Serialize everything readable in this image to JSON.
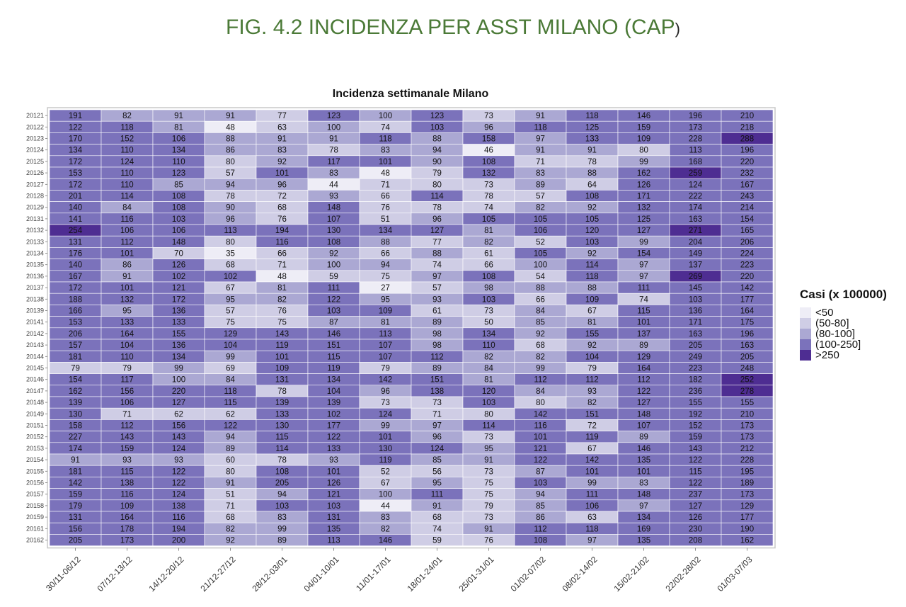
{
  "figure_title": "FIG. 4.2 INCIDENZA PER ASST MILANO (CAP",
  "figure_title_paren": ")",
  "chart_data": {
    "type": "heatmap",
    "title": "Incidenza settimanale Milano",
    "x": [
      "30/11-06/12",
      "07/12-13/12",
      "14/12-20/12",
      "21/12-27/12",
      "28/12-03/01",
      "04/01-10/01",
      "11/01-17/01",
      "18/01-24/01",
      "25/01-31/01",
      "01/02-07/02",
      "08/02-14/02",
      "15/02-21/02",
      "22/02-28/02",
      "01/03-07/03"
    ],
    "y": [
      "20121",
      "20122",
      "20123",
      "20124",
      "20125",
      "20126",
      "20127",
      "20128",
      "20129",
      "20131",
      "20132",
      "20133",
      "20134",
      "20135",
      "20136",
      "20137",
      "20138",
      "20139",
      "20141",
      "20142",
      "20143",
      "20144",
      "20145",
      "20146",
      "20147",
      "20148",
      "20149",
      "20151",
      "20152",
      "20153",
      "20154",
      "20155",
      "20156",
      "20157",
      "20158",
      "20159",
      "20161",
      "20162"
    ],
    "values": [
      [
        191,
        82,
        91,
        91,
        77,
        123,
        100,
        123,
        73,
        91,
        118,
        146,
        196,
        210
      ],
      [
        122,
        118,
        81,
        48,
        63,
        100,
        74,
        103,
        96,
        118,
        125,
        159,
        173,
        218
      ],
      [
        170,
        152,
        106,
        88,
        91,
        91,
        118,
        88,
        158,
        97,
        133,
        109,
        228,
        288
      ],
      [
        134,
        110,
        134,
        86,
        83,
        78,
        83,
        94,
        46,
        91,
        91,
        80,
        113,
        196
      ],
      [
        172,
        124,
        110,
        80,
        92,
        117,
        101,
        90,
        108,
        71,
        78,
        99,
        168,
        220
      ],
      [
        153,
        110,
        123,
        57,
        101,
        83,
        48,
        79,
        132,
        83,
        88,
        162,
        259,
        232
      ],
      [
        172,
        110,
        85,
        94,
        96,
        44,
        71,
        80,
        73,
        89,
        64,
        126,
        124,
        167
      ],
      [
        201,
        114,
        108,
        78,
        72,
        93,
        66,
        114,
        78,
        57,
        108,
        171,
        222,
        243
      ],
      [
        140,
        84,
        108,
        90,
        68,
        148,
        76,
        78,
        74,
        82,
        92,
        132,
        174,
        214
      ],
      [
        141,
        116,
        103,
        96,
        76,
        107,
        51,
        96,
        105,
        105,
        105,
        125,
        163,
        154
      ],
      [
        254,
        106,
        106,
        113,
        194,
        130,
        134,
        127,
        81,
        106,
        120,
        127,
        271,
        165
      ],
      [
        131,
        112,
        148,
        80,
        116,
        108,
        88,
        77,
        82,
        52,
        103,
        99,
        204,
        206
      ],
      [
        176,
        101,
        70,
        35,
        66,
        92,
        66,
        88,
        61,
        105,
        92,
        154,
        149,
        224
      ],
      [
        140,
        86,
        126,
        68,
        71,
        100,
        94,
        74,
        66,
        100,
        114,
        97,
        137,
        223
      ],
      [
        167,
        91,
        102,
        102,
        48,
        59,
        75,
        97,
        108,
        54,
        118,
        97,
        269,
        220
      ],
      [
        172,
        101,
        121,
        67,
        81,
        111,
        27,
        57,
        98,
        88,
        88,
        111,
        145,
        142
      ],
      [
        188,
        132,
        172,
        95,
        82,
        122,
        95,
        93,
        103,
        66,
        109,
        74,
        103,
        177
      ],
      [
        166,
        95,
        136,
        57,
        76,
        103,
        109,
        61,
        73,
        84,
        67,
        115,
        136,
        164
      ],
      [
        153,
        133,
        133,
        75,
        75,
        87,
        81,
        89,
        50,
        85,
        81,
        101,
        171,
        175
      ],
      [
        206,
        164,
        155,
        129,
        143,
        146,
        113,
        98,
        134,
        92,
        155,
        137,
        163,
        196
      ],
      [
        157,
        104,
        136,
        104,
        119,
        151,
        107,
        98,
        110,
        68,
        92,
        89,
        205,
        163
      ],
      [
        181,
        110,
        134,
        99,
        101,
        115,
        107,
        112,
        82,
        82,
        104,
        129,
        249,
        205
      ],
      [
        79,
        79,
        99,
        69,
        109,
        119,
        79,
        89,
        84,
        99,
        79,
        164,
        223,
        248
      ],
      [
        154,
        117,
        100,
        84,
        131,
        134,
        142,
        151,
        81,
        112,
        112,
        112,
        182,
        252
      ],
      [
        162,
        156,
        220,
        118,
        78,
        104,
        96,
        138,
        120,
        84,
        93,
        122,
        236,
        278
      ],
      [
        139,
        106,
        127,
        115,
        139,
        139,
        73,
        73,
        103,
        80,
        82,
        127,
        155,
        155
      ],
      [
        130,
        71,
        62,
        62,
        133,
        102,
        124,
        71,
        80,
        142,
        151,
        148,
        192,
        210
      ],
      [
        158,
        112,
        156,
        122,
        130,
        177,
        99,
        97,
        114,
        116,
        72,
        107,
        152,
        173
      ],
      [
        227,
        143,
        143,
        94,
        115,
        122,
        101,
        96,
        73,
        101,
        119,
        89,
        159,
        173
      ],
      [
        174,
        159,
        124,
        89,
        114,
        133,
        130,
        124,
        95,
        121,
        67,
        146,
        143,
        212
      ],
      [
        91,
        93,
        93,
        60,
        78,
        93,
        119,
        85,
        91,
        122,
        142,
        135,
        122,
        228
      ],
      [
        181,
        115,
        122,
        80,
        108,
        101,
        52,
        56,
        73,
        87,
        101,
        101,
        115,
        195
      ],
      [
        142,
        138,
        122,
        91,
        205,
        126,
        67,
        95,
        75,
        103,
        99,
        83,
        122,
        189
      ],
      [
        159,
        116,
        124,
        51,
        94,
        121,
        100,
        111,
        75,
        94,
        111,
        148,
        237,
        173
      ],
      [
        179,
        109,
        138,
        71,
        103,
        103,
        44,
        91,
        79,
        85,
        106,
        97,
        127,
        129
      ],
      [
        131,
        164,
        116,
        68,
        83,
        131,
        83,
        68,
        73,
        86,
        63,
        134,
        126,
        177
      ],
      [
        156,
        178,
        194,
        82,
        99,
        135,
        82,
        74,
        91,
        112,
        118,
        169,
        230,
        190
      ],
      [
        205,
        173,
        200,
        92,
        89,
        113,
        146,
        59,
        76,
        108,
        97,
        135,
        208,
        162
      ]
    ],
    "legend_title": "Casi (x 100000)",
    "legend": [
      {
        "label": "<50",
        "color": "#eeedf6"
      },
      {
        "label": "(50-80]",
        "color": "#cfcde5"
      },
      {
        "label": "(80-100]",
        "color": "#aba8d3"
      },
      {
        "label": "(100-250]",
        "color": "#7b72bb"
      },
      {
        "label": ">250",
        "color": "#4e2d92"
      }
    ],
    "legend_placement": "right",
    "grid": false
  }
}
